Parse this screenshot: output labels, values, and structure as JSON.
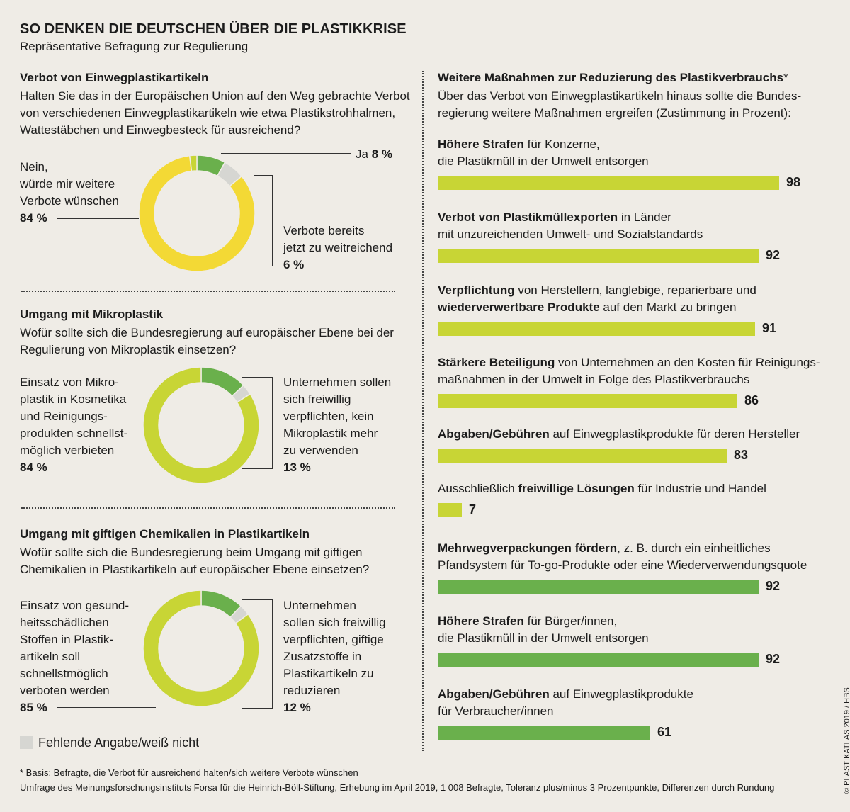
{
  "header": {
    "title": "SO DENKEN DIE DEUTSCHEN ÜBER DIE PLASTIKKRISE",
    "subtitle": "Repräsentative Befragung zur Regulierung"
  },
  "colors": {
    "light_green": "#c8d535",
    "dark_green": "#6ab04c",
    "yellow": "#f3d935",
    "grey": "#d6d6d2"
  },
  "section1": {
    "title": "Verbot von Einwegplastikartikeln",
    "question": [
      "Halten Sie das in der Europäischen Union auf den Weg gebrachte Verbot",
      "von verschiedenen Einwegplastikartikeln wie etwa Plastikstrohhalmen,",
      "Wattestäbchen und Einwegbesteck für ausreichend?"
    ],
    "label_left": [
      "Nein,",
      "würde mir weitere",
      "Verbote wünschen"
    ],
    "label_left_value": "84 %",
    "label_top_right": "Ja",
    "label_top_right_value": "8 %",
    "label_right": [
      "Verbote bereits",
      "jetzt zu weitreichend"
    ],
    "label_right_value": "6 %"
  },
  "section2": {
    "title": "Umgang mit Mikroplastik",
    "question": [
      "Wofür sollte sich die Bundesregierung auf europäischer Ebene bei der",
      "Regulierung von Mikroplastik einsetzen?"
    ],
    "label_left": [
      "Einsatz von Mikro-",
      "plastik in Kosmetika",
      "und Reinigungs-",
      "produkten schnellst-",
      "möglich verbieten"
    ],
    "label_left_value": "84 %",
    "label_right": [
      "Unternehmen sollen",
      "sich freiwillig",
      "verpflichten, kein",
      "Mikroplastik mehr",
      "zu verwenden"
    ],
    "label_right_value": "13 %"
  },
  "section3": {
    "title": "Umgang mit giftigen Chemikalien in Plastikartikeln",
    "question": [
      "Wofür sollte sich die Bundesregierung beim Umgang mit giftigen",
      "Chemikalien in Plastikartikeln auf europäischer Ebene einsetzen?"
    ],
    "label_left": [
      "Einsatz von gesund-",
      "heitsschädlichen",
      "Stoffen in Plastik-",
      "artikeln soll",
      "schnellstmöglich",
      "verboten werden"
    ],
    "label_left_value": "85 %",
    "label_right": [
      "Unternehmen",
      "sollen sich freiwillig",
      "verpflichten, giftige",
      "Zusatzstoffe in",
      "Plastikartikeln zu",
      "reduzieren"
    ],
    "label_right_value": "12 %"
  },
  "legend": {
    "missing": "Fehlende Angabe/weiß nicht"
  },
  "right_panel": {
    "title": "Weitere Maßnahmen zur Reduzierung des Plastikverbrauchs",
    "title_mark": "*",
    "intro": [
      "Über das Verbot von Einwegplastikartikeln hinaus sollte die Bundes-",
      "regierung weitere Maßnahmen ergreifen (Zustimmung in Prozent):"
    ]
  },
  "chart_data": [
    {
      "type": "pie",
      "categories": [
        "Ja",
        "Verbote bereits jetzt zu weitreichend",
        "Nein, würde mir weitere Verbote wünschen",
        "Fehlende Angabe/weiß nicht"
      ],
      "values": [
        8,
        6,
        84,
        2
      ]
    },
    {
      "type": "pie",
      "categories": [
        "Unternehmen sollen sich freiwillig verpflichten, kein Mikroplastik mehr zu verwenden",
        "Fehlende Angabe/weiß nicht",
        "Einsatz von Mikroplastik in Kosmetika und Reinigungsprodukten schnellstmöglich verbieten"
      ],
      "values": [
        13,
        3,
        84
      ]
    },
    {
      "type": "pie",
      "categories": [
        "Unternehmen sollen sich freiwillig verpflichten, giftige Zusatzstoffe in Plastikartikeln zu reduzieren",
        "Fehlende Angabe/weiß nicht",
        "Einsatz von gesundheitsschädlichen Stoffen in Plastikartikeln soll schnellstmöglich verboten werden"
      ],
      "values": [
        12,
        3,
        85
      ]
    },
    {
      "type": "bar",
      "xlim": [
        0,
        100
      ],
      "items": [
        {
          "bold": "Höhere Strafen",
          "rest": " für Konzerne,",
          "line2": "die Plastikmüll in der Umwelt entsorgen",
          "value": 98,
          "color": "light"
        },
        {
          "bold": "Verbot von Plastikmüllexporten",
          "rest": " in Länder",
          "line2": "mit unzureichenden Umwelt- und Sozialstandards",
          "value": 92,
          "color": "light"
        },
        {
          "bold": "Verpflichtung",
          "rest": " von Herstellern, langlebige, reparierbare und",
          "line2_bold": "wiederverwertbare Produkte",
          "line2": " auf den Markt zu bringen",
          "value": 91,
          "color": "light"
        },
        {
          "bold": "Stärkere Beteiligung",
          "rest": " von Unternehmen an den Kosten für Reinigungs-",
          "line2": "maßnahmen in der Umwelt in Folge des Plastikverbrauchs",
          "value": 86,
          "color": "light"
        },
        {
          "bold": "Abgaben/Gebühren",
          "rest": " auf Einwegplastikprodukte für deren Hersteller",
          "value": 83,
          "color": "light"
        },
        {
          "pre": "Ausschließlich ",
          "bold": "freiwillige Lösungen",
          "rest": " für Industrie und Handel",
          "value": 7,
          "color": "light"
        },
        {
          "bold": "Mehrwegverpackungen fördern",
          "rest": ", z. B. durch ein einheitliches",
          "line2": "Pfandsystem für To-go-Produkte oder eine Wiederverwendungsquote",
          "value": 92,
          "color": "dark"
        },
        {
          "bold": "Höhere Strafen",
          "rest": " für Bürger/innen,",
          "line2": "die Plastikmüll in der Umwelt entsorgen",
          "value": 92,
          "color": "dark"
        },
        {
          "bold": "Abgaben/Gebühren",
          "rest": " auf Einwegplastikprodukte",
          "line2": "für Verbraucher/innen",
          "value": 61,
          "color": "dark"
        }
      ]
    }
  ],
  "footer": {
    "note": "* Basis: Befragte, die Verbot für ausreichend halten/sich weitere Verbote wünschen",
    "source": "Umfrage des Meinungsforschungsinstituts Forsa für die Heinrich-Böll-Stiftung, Erhebung im April 2019, 1 008 Befragte, Toleranz plus/minus 3 Prozentpunkte, Differenzen durch Rundung",
    "credit": "© PLASTIKATLAS 2019 / HBS"
  }
}
